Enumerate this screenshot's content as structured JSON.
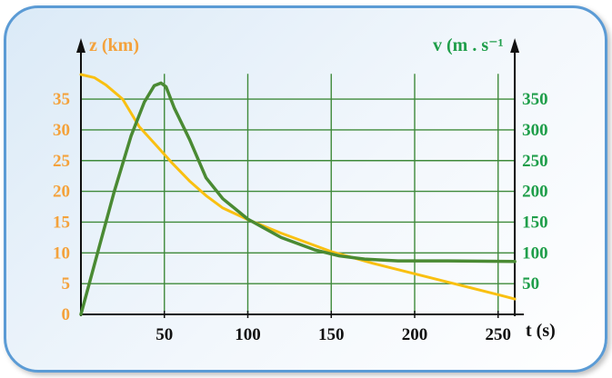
{
  "chart_data": {
    "type": "line",
    "x_axis": {
      "label": "t (s)",
      "ticks": [
        50,
        100,
        150,
        200,
        250
      ],
      "range": [
        0,
        260
      ]
    },
    "y_left": {
      "label": "z (km)",
      "ticks": [
        0,
        5,
        10,
        15,
        20,
        25,
        30,
        35
      ],
      "range": [
        0,
        40
      ],
      "color": "#f4a23c"
    },
    "y_right": {
      "label": "v (m . s⁻¹",
      "ticks": [
        50,
        100,
        150,
        200,
        250,
        300,
        350
      ],
      "range": [
        0,
        400
      ],
      "color": "#1f9e4a"
    },
    "grid": true,
    "series": [
      {
        "axis": "left",
        "color": "#f9c011",
        "x": [
          0,
          8,
          15,
          25,
          35,
          45,
          55,
          65,
          75,
          85,
          100,
          120,
          150,
          175,
          200,
          225,
          250,
          260
        ],
        "y": [
          39,
          38.5,
          37.3,
          35,
          30.5,
          27.5,
          24.5,
          21.7,
          19.3,
          17.3,
          15.4,
          13.2,
          10.2,
          8.3,
          6.6,
          4.9,
          3.2,
          2.5
        ]
      },
      {
        "axis": "right",
        "color": "#4a8a33",
        "x": [
          0,
          10,
          20,
          30,
          38,
          44,
          48,
          51,
          56,
          65,
          75,
          85,
          100,
          120,
          140,
          155,
          170,
          190,
          220,
          260
        ],
        "y": [
          0,
          100,
          200,
          290,
          345,
          372,
          376,
          370,
          335,
          285,
          222,
          188,
          155,
          125,
          105,
          95,
          90,
          87,
          87,
          86
        ]
      }
    ]
  }
}
